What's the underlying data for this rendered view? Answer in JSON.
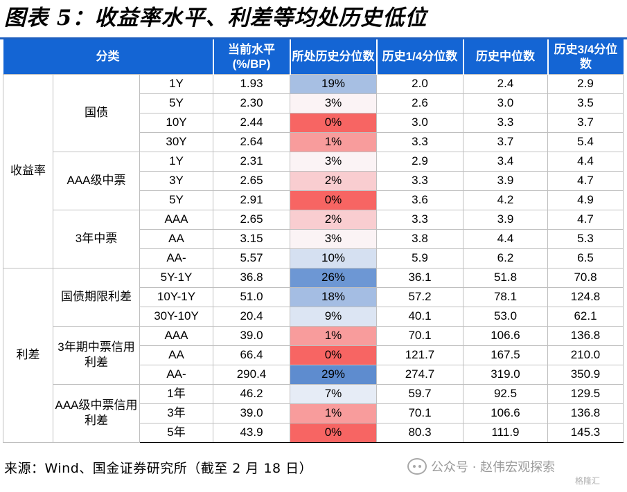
{
  "title": "图表 5：收益率水平、利差等均处历史低位",
  "headers": {
    "category": "分类",
    "current": "当前水平 (%/BP)",
    "percentile": "所处历史分位数",
    "q1": "历史1/4分位数",
    "median": "历史中位数",
    "q3": "历史3/4分位数"
  },
  "sections": [
    {
      "name": "收益率",
      "groups": [
        {
          "name": "国债",
          "rows": [
            {
              "label": "1Y",
              "current": "1.93",
              "pct": "19%",
              "q1": "2.0",
              "median": "2.4",
              "q3": "2.9",
              "color": "#a7bfe3"
            },
            {
              "label": "5Y",
              "current": "2.30",
              "pct": "3%",
              "q1": "2.6",
              "median": "3.0",
              "q3": "3.5",
              "color": "#fbf3f5"
            },
            {
              "label": "10Y",
              "current": "2.44",
              "pct": "0%",
              "q1": "3.0",
              "median": "3.3",
              "q3": "3.7",
              "color": "#f76563"
            },
            {
              "label": "30Y",
              "current": "2.64",
              "pct": "1%",
              "q1": "3.3",
              "median": "3.7",
              "q3": "5.4",
              "color": "#f89c9c"
            }
          ]
        },
        {
          "name": "AAA级中票",
          "rows": [
            {
              "label": "1Y",
              "current": "2.31",
              "pct": "3%",
              "q1": "2.9",
              "median": "3.4",
              "q3": "4.4",
              "color": "#fbf3f5"
            },
            {
              "label": "3Y",
              "current": "2.65",
              "pct": "2%",
              "q1": "3.3",
              "median": "3.9",
              "q3": "4.7",
              "color": "#f9cdd0"
            },
            {
              "label": "5Y",
              "current": "2.91",
              "pct": "0%",
              "q1": "3.6",
              "median": "4.2",
              "q3": "4.9",
              "color": "#f76563"
            }
          ]
        },
        {
          "name": "3年中票",
          "rows": [
            {
              "label": "AAA",
              "current": "2.65",
              "pct": "2%",
              "q1": "3.3",
              "median": "3.9",
              "q3": "4.7",
              "color": "#f9cdd0"
            },
            {
              "label": "AA",
              "current": "3.15",
              "pct": "3%",
              "q1": "3.8",
              "median": "4.4",
              "q3": "5.3",
              "color": "#fbf3f5"
            },
            {
              "label": "AA-",
              "current": "5.57",
              "pct": "10%",
              "q1": "5.9",
              "median": "6.2",
              "q3": "6.5",
              "color": "#d5e0f1"
            }
          ]
        }
      ]
    },
    {
      "name": "利差",
      "groups": [
        {
          "name": "国债期限利差",
          "rows": [
            {
              "label": "5Y-1Y",
              "current": "36.8",
              "pct": "26%",
              "q1": "36.1",
              "median": "51.8",
              "q3": "70.8",
              "color": "#6d97d4"
            },
            {
              "label": "10Y-1Y",
              "current": "51.0",
              "pct": "18%",
              "q1": "57.2",
              "median": "78.1",
              "q3": "124.8",
              "color": "#a4bde3"
            },
            {
              "label": "30Y-10Y",
              "current": "20.4",
              "pct": "9%",
              "q1": "40.1",
              "median": "53.0",
              "q3": "62.1",
              "color": "#dce5f3"
            }
          ]
        },
        {
          "name": "3年期中票信用利差",
          "rows": [
            {
              "label": "AAA",
              "current": "39.0",
              "pct": "1%",
              "q1": "70.1",
              "median": "106.6",
              "q3": "136.8",
              "color": "#f89c9c"
            },
            {
              "label": "AA",
              "current": "66.4",
              "pct": "0%",
              "q1": "121.7",
              "median": "167.5",
              "q3": "210.0",
              "color": "#f76563"
            },
            {
              "label": "AA-",
              "current": "290.4",
              "pct": "29%",
              "q1": "274.7",
              "median": "319.0",
              "q3": "350.9",
              "color": "#5e8ccf"
            }
          ]
        },
        {
          "name": "AAA级中票信用利差",
          "rows": [
            {
              "label": "1年",
              "current": "46.2",
              "pct": "7%",
              "q1": "59.7",
              "median": "92.5",
              "q3": "129.5",
              "color": "#e6ecf6"
            },
            {
              "label": "3年",
              "current": "39.0",
              "pct": "1%",
              "q1": "70.1",
              "median": "106.6",
              "q3": "136.8",
              "color": "#f89c9c"
            },
            {
              "label": "5年",
              "current": "43.9",
              "pct": "0%",
              "q1": "80.3",
              "median": "111.9",
              "q3": "145.3",
              "color": "#f76563"
            }
          ]
        }
      ]
    }
  ],
  "source": "来源：Wind、国金证券研究所（截至 2 月 18 日）",
  "watermark": "公众号 · 赵伟宏观探索",
  "watermark2": "格隆汇"
}
